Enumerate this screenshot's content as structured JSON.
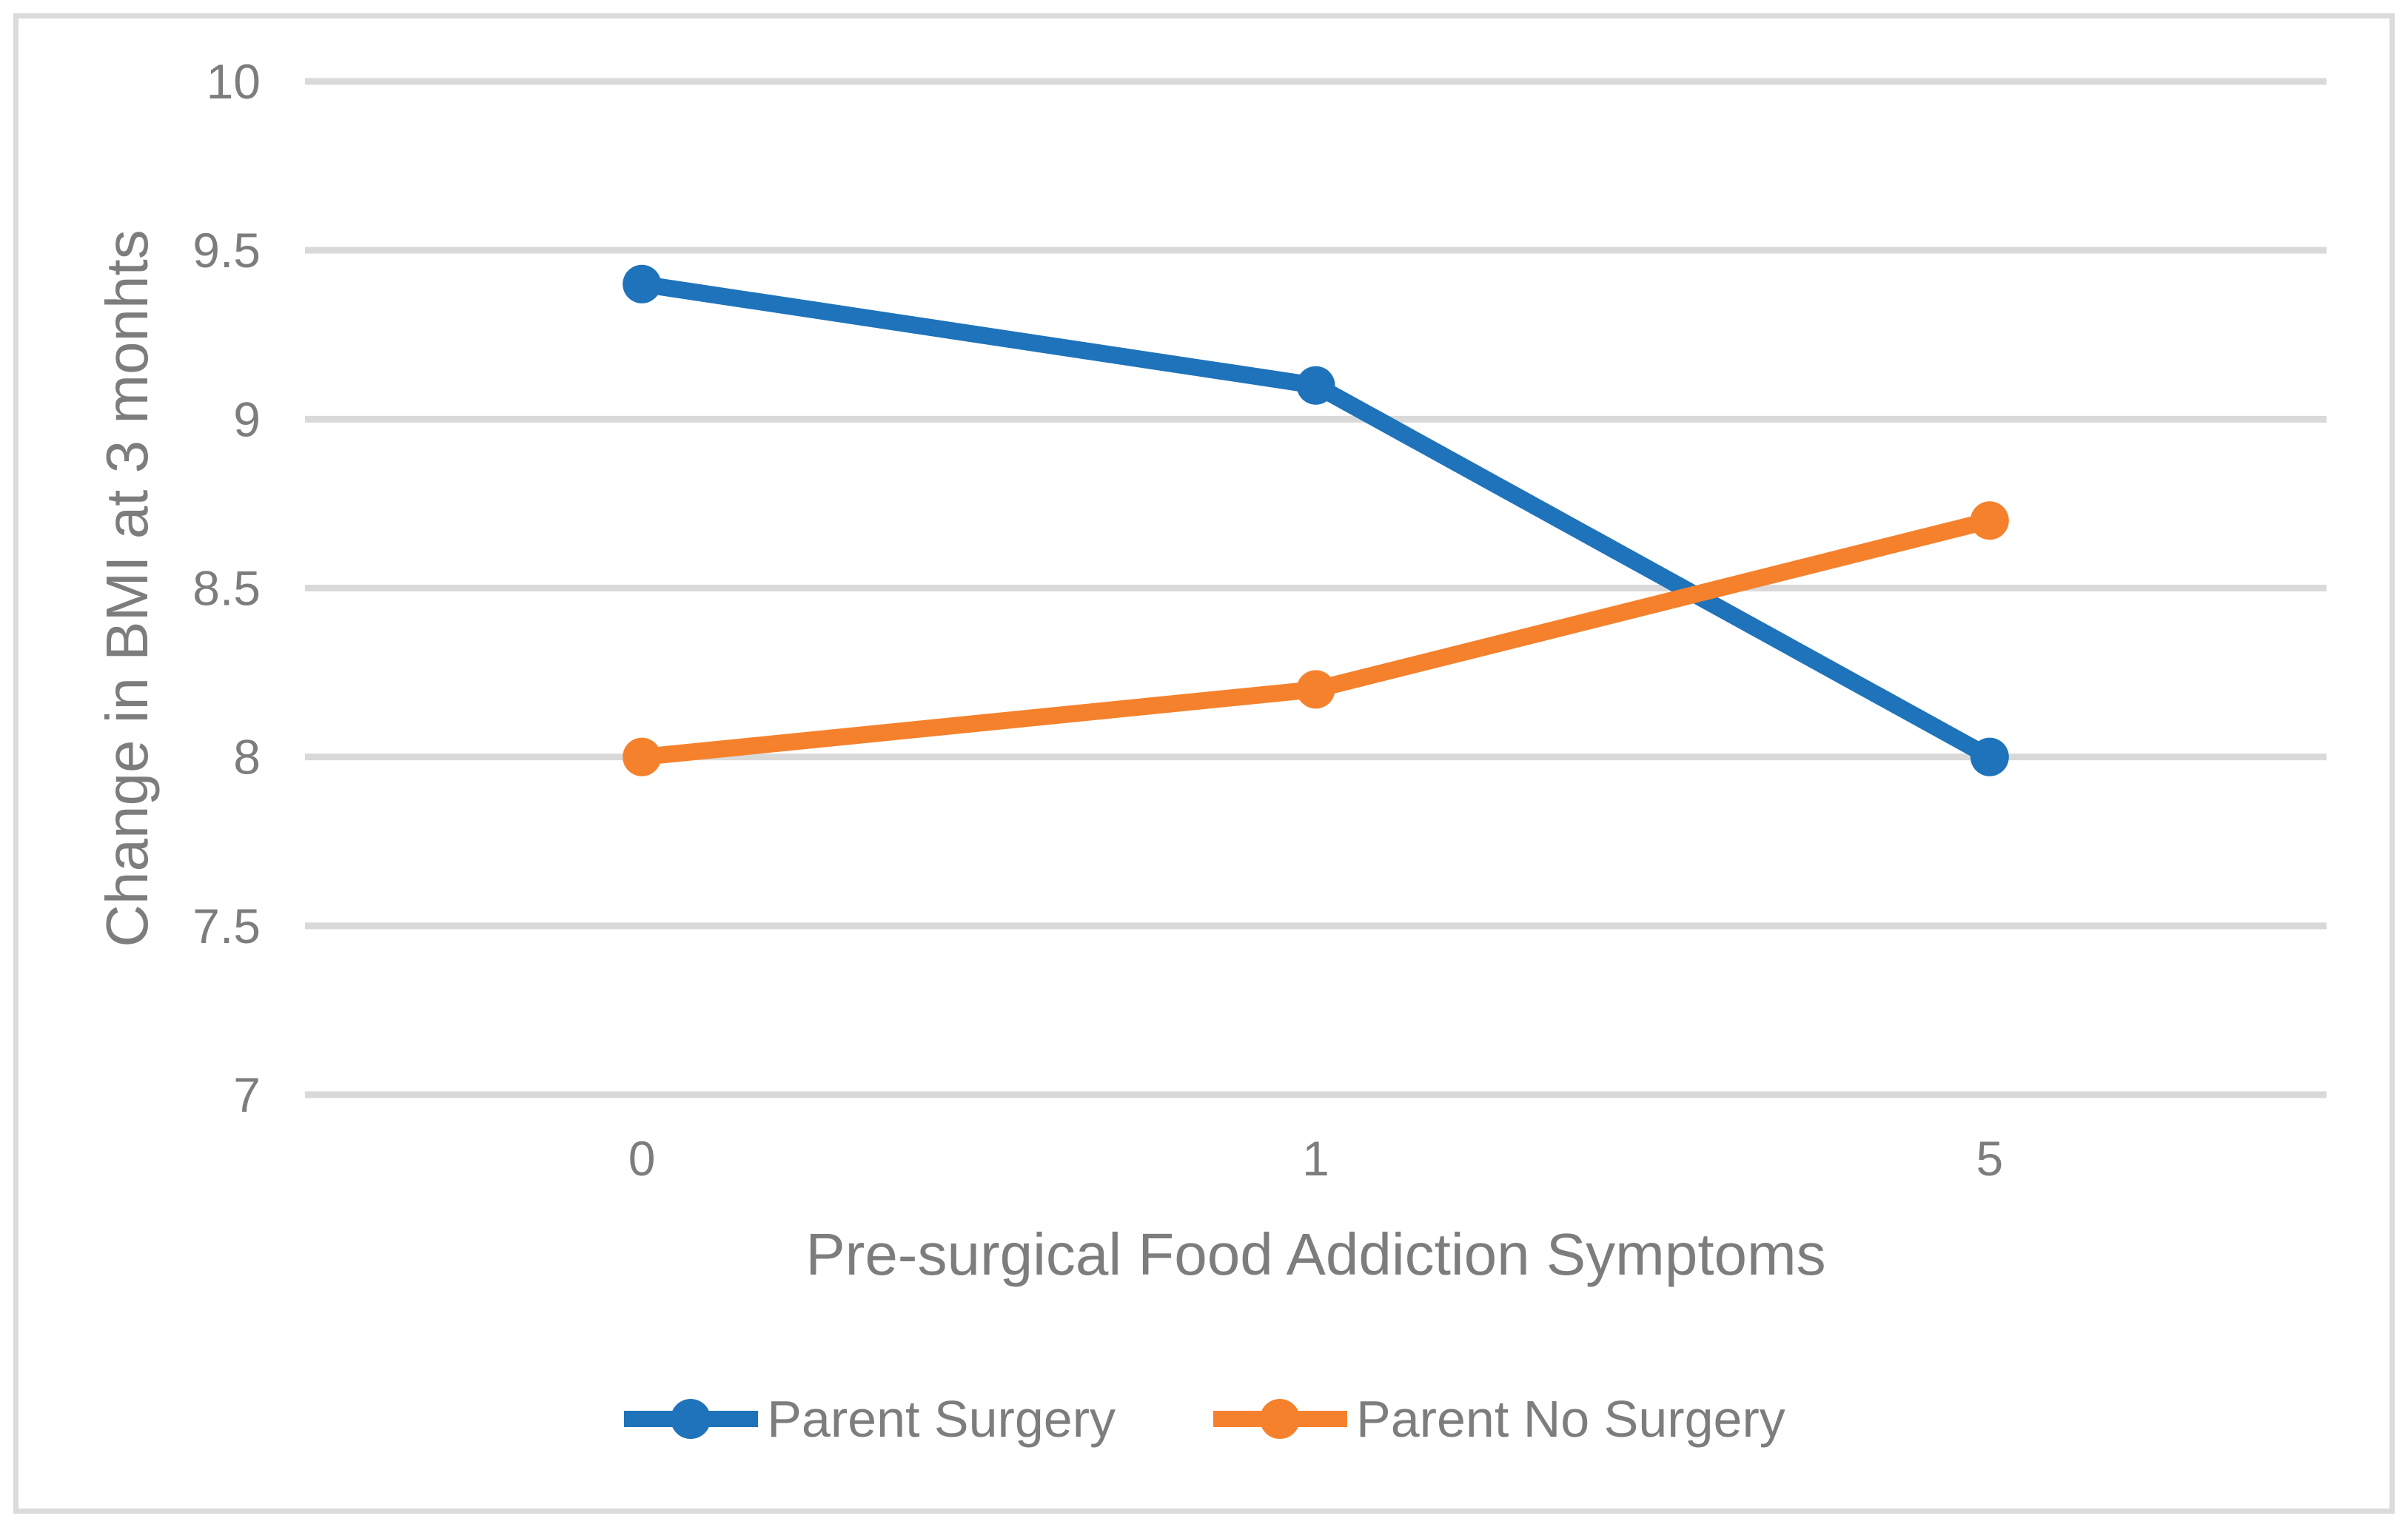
{
  "chart_data": {
    "type": "line",
    "title": "",
    "xlabel": "Pre-surgical Food Addiction Symptoms",
    "ylabel": "Change in BMI at 3 monhts",
    "categories": [
      "0",
      "1",
      "5"
    ],
    "series": [
      {
        "name": "Parent Surgery",
        "values": [
          9.4,
          9.1,
          8.0
        ],
        "color": "#1E73BA"
      },
      {
        "name": "Parent No Surgery",
        "values": [
          8.0,
          8.2,
          8.7
        ],
        "color": "#F5812C"
      }
    ],
    "ylim": [
      7,
      10
    ],
    "ytick_labels": [
      "7",
      "7.5",
      "8",
      "8.5",
      "9",
      "9.5",
      "10"
    ],
    "grid": true,
    "legend_position": "bottom",
    "marker": "circle",
    "colors": {
      "gridline": "#D9D9D9",
      "frame_border": "#DBDBDB",
      "text": "#7D7D7D",
      "background": "#FFFFFF"
    }
  }
}
